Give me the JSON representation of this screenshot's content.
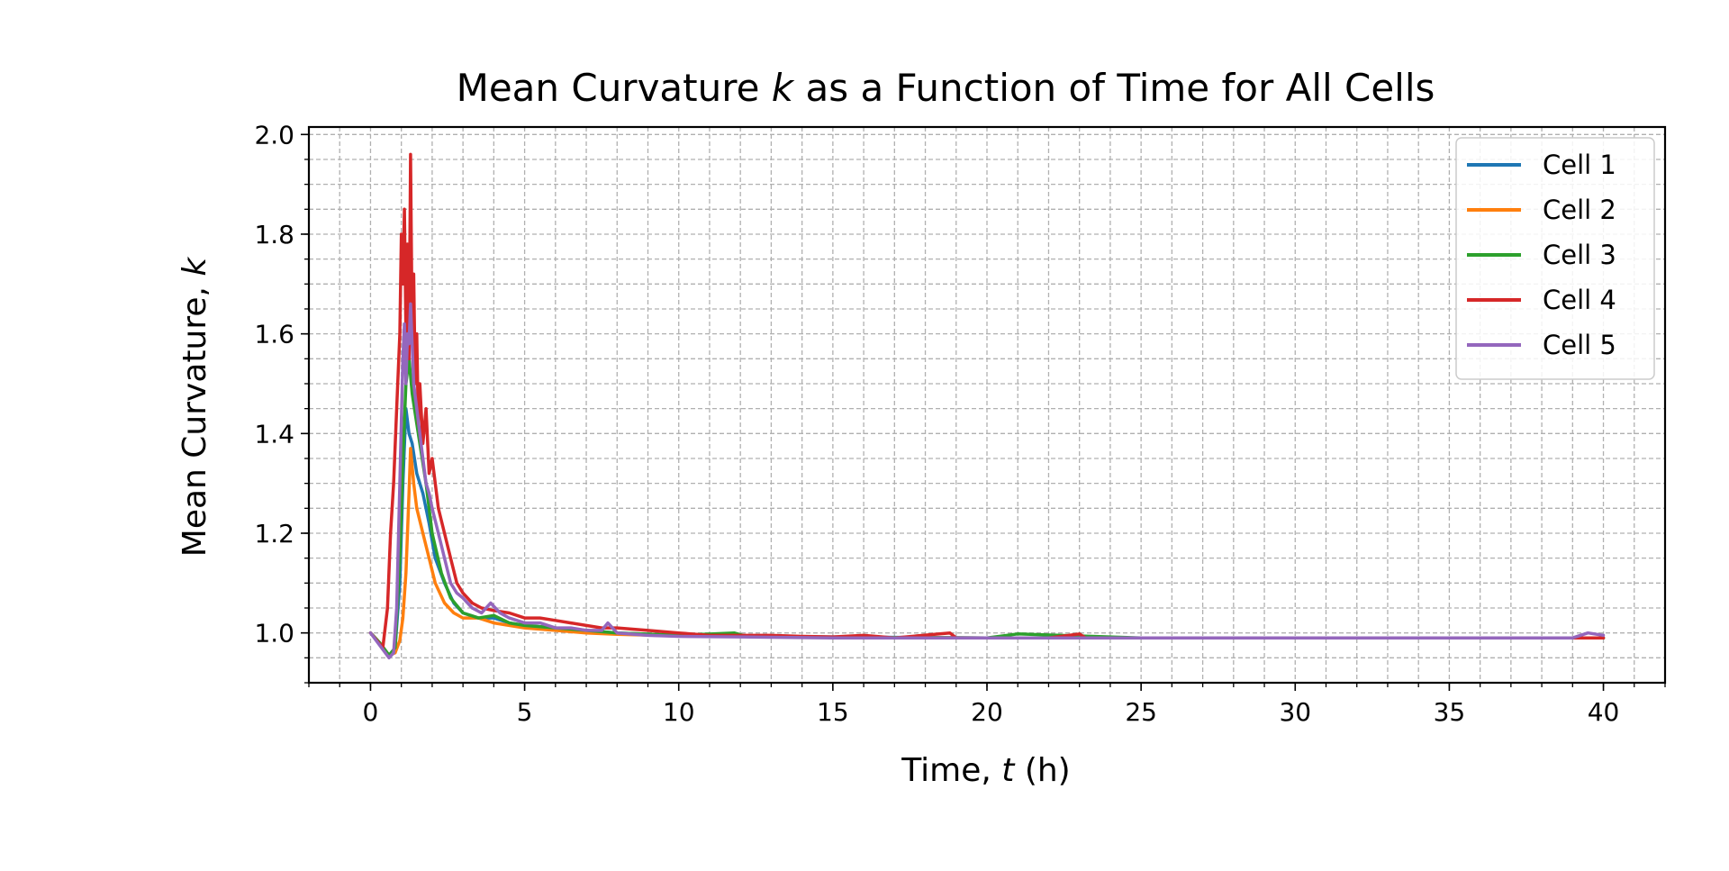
{
  "chart_data": {
    "type": "line",
    "title_pre": "Mean Curvature ",
    "title_var": "k",
    "title_post": " as a Function of Time for All Cells",
    "xlabel_pre": "Time, ",
    "xlabel_var": "t",
    "xlabel_post": " (h)",
    "ylabel_pre": "Mean Curvature, ",
    "ylabel_var": "k",
    "xlim": [
      -2,
      42
    ],
    "ylim": [
      0.9,
      2.015
    ],
    "xticks": [
      0,
      5,
      10,
      15,
      20,
      25,
      30,
      35,
      40
    ],
    "yticks": [
      1.0,
      1.2,
      1.4,
      1.6,
      1.8,
      2.0
    ],
    "xtick_labels": [
      "0",
      "5",
      "10",
      "15",
      "20",
      "25",
      "30",
      "35",
      "40"
    ],
    "ytick_labels": [
      "1.0",
      "1.2",
      "1.4",
      "1.6",
      "1.8",
      "2.0"
    ],
    "x_minor_step": 1,
    "y_minor_step": 0.05,
    "grid": true,
    "legend_position": "top-right",
    "series": [
      {
        "name": "Cell 1",
        "color": "#1f77b4",
        "x": [
          0,
          0.3,
          0.6,
          0.8,
          0.95,
          1.05,
          1.15,
          1.25,
          1.35,
          1.5,
          1.7,
          1.9,
          2.1,
          2.4,
          2.7,
          3.0,
          3.5,
          4.0,
          4.5,
          5,
          6,
          7,
          8,
          10,
          12,
          15,
          20,
          25,
          30,
          35,
          40
        ],
        "y": [
          1.0,
          0.98,
          0.955,
          0.97,
          1.1,
          1.3,
          1.45,
          1.4,
          1.38,
          1.32,
          1.28,
          1.22,
          1.15,
          1.1,
          1.06,
          1.04,
          1.03,
          1.03,
          1.02,
          1.015,
          1.01,
          1.005,
          1.0,
          0.995,
          0.993,
          0.992,
          0.99,
          0.99,
          0.99,
          0.99,
          0.99
        ]
      },
      {
        "name": "Cell 2",
        "color": "#ff7f0e",
        "x": [
          0,
          0.3,
          0.6,
          0.8,
          0.95,
          1.05,
          1.15,
          1.25,
          1.3,
          1.4,
          1.5,
          1.7,
          1.9,
          2.1,
          2.4,
          2.7,
          3.0,
          3.5,
          4.0,
          4.5,
          5,
          6,
          7,
          8,
          10,
          12,
          15,
          20,
          25,
          30,
          35,
          40
        ],
        "y": [
          1.0,
          0.98,
          0.955,
          0.96,
          0.985,
          1.03,
          1.12,
          1.28,
          1.37,
          1.3,
          1.25,
          1.2,
          1.15,
          1.1,
          1.06,
          1.04,
          1.03,
          1.03,
          1.02,
          1.015,
          1.01,
          1.005,
          1.0,
          0.997,
          0.994,
          0.993,
          0.991,
          0.99,
          0.99,
          0.99,
          0.99,
          0.99
        ]
      },
      {
        "name": "Cell 3",
        "color": "#2ca02c",
        "x": [
          0,
          0.3,
          0.6,
          0.8,
          0.95,
          1.05,
          1.15,
          1.25,
          1.35,
          1.5,
          1.6,
          1.8,
          2.0,
          2.3,
          2.6,
          3.0,
          3.5,
          4.0,
          4.5,
          5,
          6,
          7,
          8,
          10,
          11.8,
          12.2,
          15,
          20,
          21,
          25,
          30,
          35,
          40
        ],
        "y": [
          1.0,
          0.98,
          0.955,
          0.97,
          1.15,
          1.35,
          1.5,
          1.55,
          1.48,
          1.42,
          1.38,
          1.3,
          1.2,
          1.12,
          1.07,
          1.04,
          1.03,
          1.035,
          1.02,
          1.015,
          1.01,
          1.005,
          1.0,
          0.995,
          1.0,
          0.993,
          0.991,
          0.99,
          0.998,
          0.99,
          0.99,
          0.99,
          0.99
        ]
      },
      {
        "name": "Cell 4",
        "color": "#d62728",
        "x": [
          0,
          0.2,
          0.4,
          0.55,
          0.65,
          0.75,
          0.85,
          0.95,
          1.0,
          1.05,
          1.1,
          1.15,
          1.2,
          1.25,
          1.3,
          1.35,
          1.4,
          1.45,
          1.5,
          1.55,
          1.6,
          1.7,
          1.8,
          1.9,
          2.0,
          2.2,
          2.4,
          2.6,
          2.8,
          3.0,
          3.3,
          3.6,
          4.0,
          4.5,
          5.0,
          5.5,
          6.0,
          6.5,
          7.0,
          7.5,
          8.0,
          9.0,
          10,
          11,
          12,
          13,
          14,
          15,
          16,
          17,
          18.8,
          19,
          20,
          21,
          22,
          23,
          23.2,
          25,
          27,
          30,
          32,
          35,
          37,
          39,
          40
        ],
        "y": [
          1.0,
          0.985,
          0.97,
          1.05,
          1.2,
          1.3,
          1.45,
          1.6,
          1.8,
          1.7,
          1.85,
          1.6,
          1.78,
          1.55,
          1.96,
          1.6,
          1.72,
          1.5,
          1.6,
          1.42,
          1.5,
          1.38,
          1.45,
          1.32,
          1.35,
          1.25,
          1.2,
          1.15,
          1.1,
          1.08,
          1.06,
          1.05,
          1.045,
          1.04,
          1.03,
          1.03,
          1.025,
          1.02,
          1.015,
          1.01,
          1.01,
          1.005,
          1.0,
          0.995,
          0.995,
          0.995,
          0.993,
          0.992,
          0.995,
          0.99,
          1.0,
          0.99,
          0.99,
          0.99,
          0.99,
          0.998,
          0.99,
          0.99,
          0.99,
          0.99,
          0.99,
          0.99,
          0.99,
          0.99,
          0.99
        ]
      },
      {
        "name": "Cell 5",
        "color": "#9467bd",
        "x": [
          0,
          0.3,
          0.6,
          0.75,
          0.85,
          0.95,
          1.05,
          1.1,
          1.15,
          1.2,
          1.25,
          1.3,
          1.4,
          1.5,
          1.6,
          1.7,
          1.8,
          1.9,
          2.0,
          2.2,
          2.4,
          2.6,
          2.8,
          3.0,
          3.3,
          3.6,
          3.9,
          4.2,
          4.5,
          5,
          5.5,
          6,
          6.5,
          7,
          7.5,
          7.7,
          8,
          9,
          10,
          12,
          15,
          20,
          25,
          30,
          35,
          39,
          39.5,
          40
        ],
        "y": [
          1.0,
          0.975,
          0.95,
          0.96,
          1.05,
          1.3,
          1.55,
          1.62,
          1.5,
          1.6,
          1.58,
          1.66,
          1.5,
          1.45,
          1.4,
          1.35,
          1.3,
          1.28,
          1.25,
          1.2,
          1.15,
          1.1,
          1.08,
          1.07,
          1.05,
          1.04,
          1.06,
          1.04,
          1.03,
          1.02,
          1.02,
          1.01,
          1.01,
          1.005,
          1.005,
          1.02,
          1.0,
          0.995,
          0.993,
          0.992,
          0.99,
          0.99,
          0.99,
          0.99,
          0.99,
          0.99,
          1.0,
          0.995
        ]
      }
    ]
  }
}
